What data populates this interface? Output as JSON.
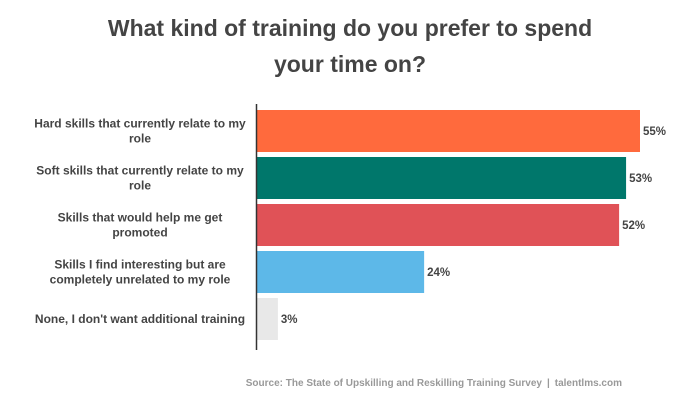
{
  "chart_data": {
    "type": "bar",
    "orientation": "horizontal",
    "title_lines": [
      "What kind of training do you prefer to spend",
      "your time on?"
    ],
    "categories": [
      [
        "Hard skills that currently relate to my",
        "role"
      ],
      [
        "Soft skills that currently relate to my",
        "role"
      ],
      [
        "Skills that would help me get",
        "promoted"
      ],
      [
        "Skills I find interesting but are",
        "completely unrelated to my role"
      ],
      [
        "None, I don't want additional training"
      ]
    ],
    "values": [
      55,
      53,
      52,
      24,
      3
    ],
    "value_labels": [
      "55%",
      "53%",
      "52%",
      "24%",
      "3%"
    ],
    "colors": [
      "#ff6a3d",
      "#00776b",
      "#e05257",
      "#5db8e8",
      "#e8e8e8"
    ],
    "xlim": [
      0,
      55
    ],
    "grid": false,
    "legend": "none"
  },
  "footer": {
    "source": "Source: The State of Upskilling and Reskilling Training Survey",
    "separator": "|",
    "site": "talentlms.com"
  }
}
